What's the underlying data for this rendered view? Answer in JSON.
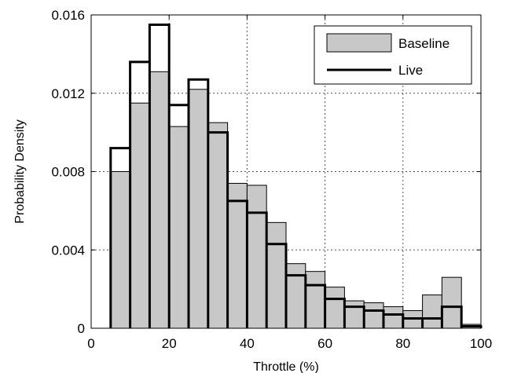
{
  "chart_data": {
    "type": "bar",
    "title": "",
    "xlabel": "Throttle (%)",
    "ylabel": "Probability Density",
    "xlim": [
      0,
      100
    ],
    "ylim": [
      0,
      0.016
    ],
    "grid": true,
    "legend_position": "top-right",
    "bin_width": 5,
    "bin_starts": [
      5,
      10,
      15,
      20,
      25,
      30,
      35,
      40,
      45,
      50,
      55,
      60,
      65,
      70,
      75,
      80,
      85,
      90,
      95
    ],
    "series": [
      {
        "name": "Baseline",
        "style": "filled-gray",
        "values": [
          0.008,
          0.0115,
          0.0131,
          0.0103,
          0.0122,
          0.0105,
          0.0074,
          0.0073,
          0.0054,
          0.0033,
          0.0029,
          0.0021,
          0.0014,
          0.0013,
          0.0011,
          0.0009,
          0.0017,
          0.0026,
          0.0002
        ]
      },
      {
        "name": "Live",
        "style": "thick-black-outline",
        "values": [
          0.0092,
          0.0136,
          0.0155,
          0.0114,
          0.0127,
          0.01,
          0.0065,
          0.0059,
          0.0043,
          0.0027,
          0.0022,
          0.0015,
          0.0011,
          0.0009,
          0.0007,
          0.0005,
          0.0005,
          0.0011,
          0.0001
        ]
      }
    ],
    "x_ticks": [
      "0",
      "20",
      "40",
      "60",
      "80",
      "100"
    ],
    "y_ticks": [
      "0",
      "0.004",
      "0.008",
      "0.012",
      "0.016"
    ],
    "x_tick_values": [
      0,
      20,
      40,
      60,
      80,
      100
    ],
    "y_tick_values": [
      0,
      0.004,
      0.008,
      0.012,
      0.016
    ]
  },
  "colors": {
    "baseline_fill": "#c8c8c8",
    "baseline_edge": "#000000",
    "live_edge": "#000000",
    "grid": "#555555"
  }
}
